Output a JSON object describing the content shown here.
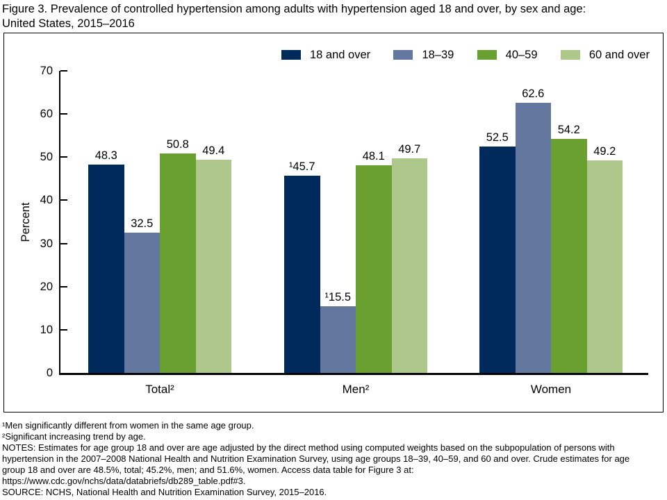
{
  "figure": {
    "title_line1": "Figure 3. Prevalence of controlled hypertension among adults with hypertension aged 18 and over, by sex and age:",
    "title_line2": "United States, 2015–2016"
  },
  "chart_data": {
    "type": "bar",
    "title": "Figure 3. Prevalence of controlled hypertension among adults with hypertension aged 18 and over, by sex and age: United States, 2015–2016",
    "xlabel": "",
    "ylabel": "Percent",
    "ylim": [
      0,
      70
    ],
    "yticks": [
      0,
      10,
      20,
      30,
      40,
      50,
      60,
      70
    ],
    "grid": false,
    "legend_position": "top-right-inside",
    "categories": [
      "Total²",
      "Men²",
      "Women"
    ],
    "series": [
      {
        "name": "18 and over",
        "color": "#002a5c",
        "values": [
          48.3,
          45.7,
          52.5
        ],
        "bar_labels": [
          "48.3",
          "¹45.7",
          "52.5"
        ]
      },
      {
        "name": "18–39",
        "color": "#64779e",
        "values": [
          32.5,
          15.5,
          62.6
        ],
        "bar_labels": [
          "32.5",
          "¹15.5",
          "62.6"
        ]
      },
      {
        "name": "40–59",
        "color": "#69a030",
        "values": [
          50.8,
          48.1,
          54.2
        ],
        "bar_labels": [
          "50.8",
          "48.1",
          "54.2"
        ]
      },
      {
        "name": "60 and over",
        "color": "#aec88c",
        "values": [
          49.4,
          49.7,
          49.2
        ],
        "bar_labels": [
          "49.4",
          "49.7",
          "49.2"
        ]
      }
    ]
  },
  "footnotes": {
    "lines": [
      "¹Men significantly different from women in the same age group.",
      "²Significant increasing trend by age.",
      "NOTES: Estimates for age group 18 and over are age adjusted by the direct method using computed weights based on the subpopulation of persons with",
      "hypertension in the 2007–2008 National Health and Nutrition Examination Survey, using age groups 18–39, 40–59, and 60 and over. Crude estimates for age",
      "group 18 and over are 48.5%, total; 45.2%, men; and 51.6%, women. Access data table for Figure 3 at:",
      "https://www.cdc.gov/nchs/data/databriefs/db289_table.pdf#3.",
      "SOURCE: NCHS, National Health and Nutrition Examination Survey, 2015–2016."
    ]
  }
}
